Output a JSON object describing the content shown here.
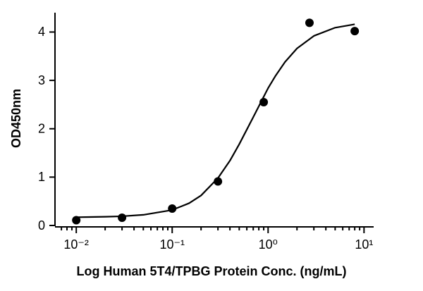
{
  "chart_data": {
    "type": "scatter",
    "x_label": "Log Human 5T4/TPBG Protein Conc. (ng/mL)",
    "y_label": "OD450nm",
    "xscale": "log",
    "xlim": [
      0.006,
      12.6
    ],
    "ylim": [
      0,
      4.4
    ],
    "xticks": [
      {
        "value": 0.01,
        "label": "10⁻²"
      },
      {
        "value": 0.1,
        "label": "10⁻¹"
      },
      {
        "value": 1,
        "label": "10⁰"
      },
      {
        "value": 10,
        "label": "10¹"
      }
    ],
    "xminorticks": [
      0.007,
      0.008,
      0.009,
      0.02,
      0.03,
      0.04,
      0.05,
      0.06,
      0.07,
      0.08,
      0.09,
      0.2,
      0.3,
      0.4,
      0.5,
      0.6,
      0.7,
      0.8,
      0.9,
      2,
      3,
      4,
      5,
      6,
      7,
      8,
      9
    ],
    "yticks": [
      0,
      1,
      2,
      3,
      4
    ],
    "series": [
      {
        "color": "#000000",
        "x": [
          0.01,
          0.03,
          0.1,
          0.3,
          0.9,
          2.7,
          8
        ],
        "values": [
          0.11,
          0.16,
          0.35,
          0.91,
          2.55,
          4.19,
          4.02
        ]
      }
    ],
    "fit": {
      "color": "#000000",
      "x": [
        0.01,
        0.02,
        0.03,
        0.05,
        0.1,
        0.15,
        0.2,
        0.3,
        0.4,
        0.5,
        0.7,
        1,
        1.2,
        1.5,
        2,
        3,
        5,
        8
      ],
      "values": [
        0.17,
        0.18,
        0.19,
        0.22,
        0.32,
        0.46,
        0.62,
        0.98,
        1.34,
        1.68,
        2.24,
        2.84,
        3.1,
        3.38,
        3.66,
        3.92,
        4.09,
        4.16
      ]
    }
  }
}
